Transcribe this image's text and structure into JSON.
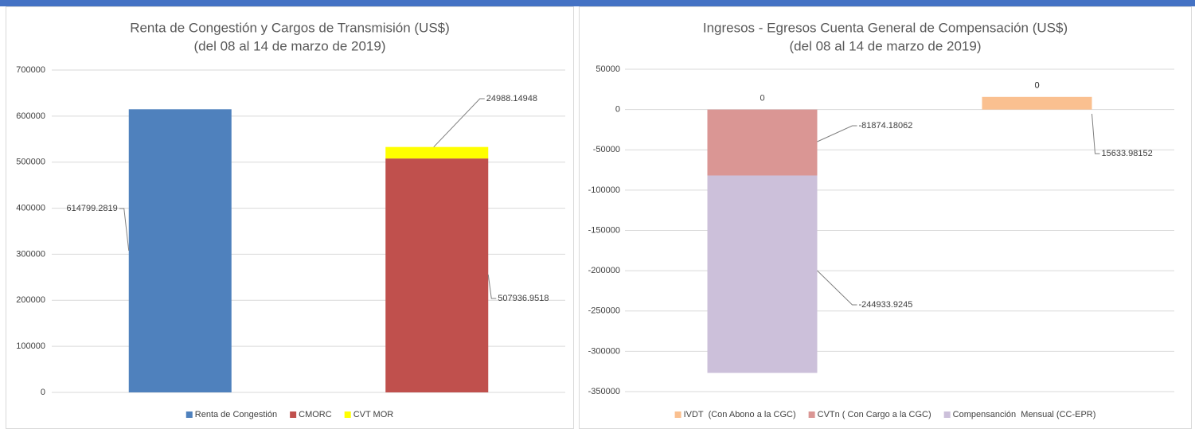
{
  "chart_data": [
    {
      "type": "bar",
      "stacked": true,
      "title": "Renta de Congestión y Cargos de Transmisión (US$)",
      "subtitle": "(del 08 al 14 de marzo de 2019)",
      "categories": [
        null,
        null
      ],
      "series": [
        {
          "name": "Renta de Congestión",
          "color": "#4f81bd",
          "values": [
            614799.2819,
            null
          ]
        },
        {
          "name": "CMORC",
          "color": "#c0504d",
          "values": [
            null,
            507936.9518
          ]
        },
        {
          "name": "CVT MOR",
          "color": "#ffff00",
          "values": [
            null,
            24988.14948
          ]
        }
      ],
      "ylim": [
        0,
        700000
      ],
      "yticks": [
        0,
        100000,
        200000,
        300000,
        400000,
        500000,
        600000,
        700000
      ],
      "grid": true,
      "legend": "bottom"
    },
    {
      "type": "bar",
      "stacked": true,
      "title": "Ingresos - Egresos Cuenta General de Compensación (US$)",
      "subtitle": "(del 08 al 14 de marzo de 2019)",
      "categories": [
        null,
        null
      ],
      "series": [
        {
          "name": "IVDT  (Con Abono a la CGC)",
          "color": "#fac090",
          "values": [
            0,
            15633.98152
          ]
        },
        {
          "name": "CVTn ( Con Cargo a la CGC)",
          "color": "#da9694",
          "values": [
            -81874.18062,
            0
          ]
        },
        {
          "name": "Compensanción  Mensual (CC-EPR)",
          "color": "#ccc0da",
          "values": [
            -244933.9245,
            0
          ]
        }
      ],
      "ylim": [
        -350000,
        50000
      ],
      "yticks": [
        -350000,
        -300000,
        -250000,
        -200000,
        -150000,
        -100000,
        -50000,
        0,
        50000
      ],
      "grid": true,
      "legend": "bottom"
    }
  ]
}
